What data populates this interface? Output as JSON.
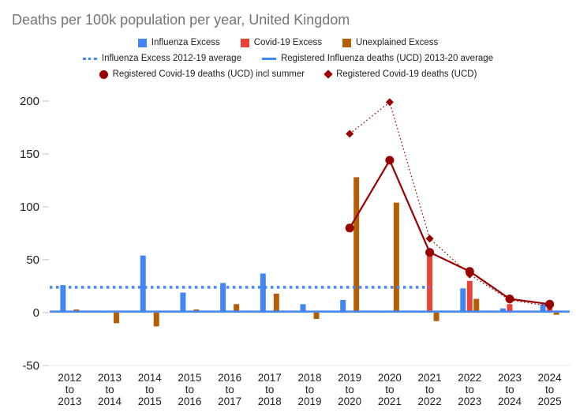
{
  "chart_data": {
    "type": "bar",
    "title": "Deaths per 100k population per year, United Kingdom",
    "categories": [
      "2012 to 2013",
      "2013 to 2014",
      "2014 to 2015",
      "2015 to 2016",
      "2016 to 2017",
      "2017 to 2018",
      "2018 to 2019",
      "2019 to 2020",
      "2020 to 2021",
      "2021 to 2022",
      "2022 to 2023",
      "2023 to 2024",
      "2024 to 2025"
    ],
    "ylim": [
      -50,
      200
    ],
    "yticks": [
      -50,
      0,
      50,
      100,
      150,
      200
    ],
    "grid": "baseline-only",
    "legend_position": "top",
    "legend_rows": [
      [
        0,
        1,
        2
      ],
      [
        3,
        4
      ],
      [
        5,
        6
      ]
    ],
    "series": [
      {
        "name": "Influenza Excess",
        "kind": "bar",
        "swatch": "square",
        "color": "#4285f4",
        "values": [
          26,
          1,
          54,
          19,
          28,
          37,
          8,
          12,
          1,
          1,
          23,
          4,
          8
        ]
      },
      {
        "name": "Covid-19 Excess",
        "kind": "bar",
        "swatch": "square",
        "color": "#ea4335",
        "values": [
          0,
          0,
          0,
          0,
          0,
          0,
          0,
          0,
          0,
          57,
          30,
          8,
          5
        ]
      },
      {
        "name": "Unexplained Excess",
        "kind": "bar",
        "swatch": "square",
        "color": "#b45f06",
        "values": [
          3,
          -10,
          -13,
          3,
          8,
          18,
          -6,
          128,
          104,
          -8,
          13,
          0,
          -2
        ]
      },
      {
        "name": "Influenza Excess 2012-19 average",
        "kind": "hline",
        "swatch": "dotted-line",
        "dash": true,
        "color": "#4285f4",
        "value": 24,
        "end_cat": 9
      },
      {
        "name": "Registered Influenza deaths (UCD) 2013-20 average",
        "kind": "hline",
        "swatch": "line",
        "dash": false,
        "color": "#4285f4",
        "value": 1
      },
      {
        "name": "Registered Covid-19 deaths (UCD) incl summer",
        "kind": "line",
        "swatch": "circle",
        "marker": "circle",
        "dash": false,
        "color": "#990000",
        "values": [
          null,
          null,
          null,
          null,
          null,
          null,
          null,
          80,
          144,
          57,
          39,
          13,
          8
        ]
      },
      {
        "name": "Registered Covid-19 deaths (UCD)",
        "kind": "line",
        "swatch": "diamond",
        "marker": "diamond",
        "dash": true,
        "color": "#990000",
        "values": [
          null,
          null,
          null,
          null,
          null,
          null,
          null,
          169,
          199,
          70,
          36,
          12,
          6
        ]
      }
    ]
  }
}
